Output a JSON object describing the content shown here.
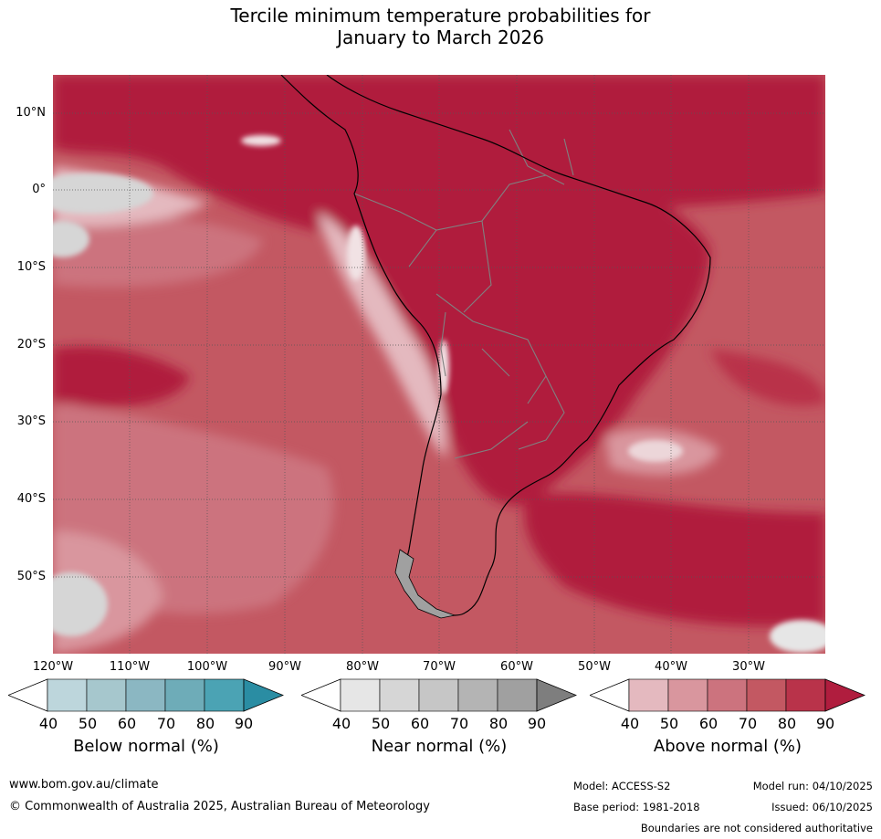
{
  "title": {
    "line1": "Tercile minimum temperature probabilities for",
    "line2": "January to March 2026"
  },
  "map": {
    "region": "South America",
    "latitude_labels": [
      "10°N",
      "0°",
      "10°S",
      "20°S",
      "30°S",
      "40°S",
      "50°S"
    ],
    "longitude_labels": [
      "120°W",
      "110°W",
      "100°W",
      "90°W",
      "80°W",
      "70°W",
      "60°W",
      "50°W",
      "40°W",
      "30°W"
    ]
  },
  "legends": [
    {
      "title": "Below normal (%)",
      "ticks": [
        "40",
        "50",
        "60",
        "70",
        "80",
        "90"
      ],
      "colors": [
        "#ffffff",
        "#bdd6dc",
        "#a6c7cd",
        "#8bb7c2",
        "#6eacb8",
        "#4ba3b4",
        "#2a8da3"
      ]
    },
    {
      "title": "Near normal (%)",
      "ticks": [
        "40",
        "50",
        "60",
        "70",
        "80",
        "90"
      ],
      "colors": [
        "#ffffff",
        "#e6e6e6",
        "#d6d6d6",
        "#c6c6c6",
        "#b4b4b4",
        "#a0a0a0",
        "#7e7e7e"
      ]
    },
    {
      "title": "Above normal (%)",
      "ticks": [
        "40",
        "50",
        "60",
        "70",
        "80",
        "90"
      ],
      "colors": [
        "#ffffff",
        "#e4b9bf",
        "#d9969e",
        "#cc737e",
        "#c35862",
        "#b9334a",
        "#b01d3e"
      ]
    }
  ],
  "footer": {
    "website": "www.bom.gov.au/climate",
    "copyright": "© Commonwealth of Australia 2025, Australian Bureau of Meteorology",
    "model": "Model: ACCESS-S2",
    "base_period": "Base period: 1981-2018",
    "model_run": "Model run: 04/10/2025",
    "issued": "Issued: 06/10/2025",
    "disclaimer": "Boundaries are not considered authoritative"
  }
}
